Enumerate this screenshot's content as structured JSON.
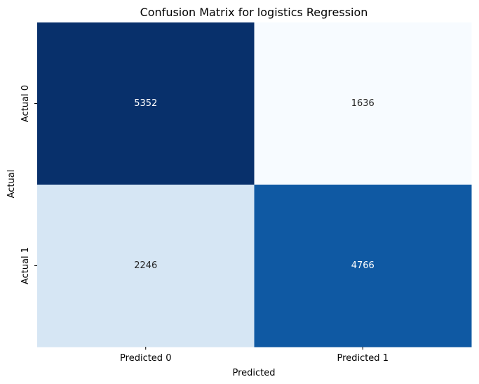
{
  "chart_data": {
    "type": "heatmap",
    "title": "Confusion Matrix for logistics Regression",
    "xlabel": "Predicted",
    "ylabel": "Actual",
    "x_categories": [
      "Predicted 0",
      "Predicted 1"
    ],
    "y_categories": [
      "Actual 0",
      "Actual 1"
    ],
    "values": [
      [
        5352,
        1636
      ],
      [
        2246,
        4766
      ]
    ],
    "colormap": "Blues",
    "colorbar": false,
    "annotations": true,
    "colors": {
      "low": "#f7fbff",
      "high": "#08306b",
      "text_dark": "#262626",
      "text_light": "#ffffff"
    }
  }
}
